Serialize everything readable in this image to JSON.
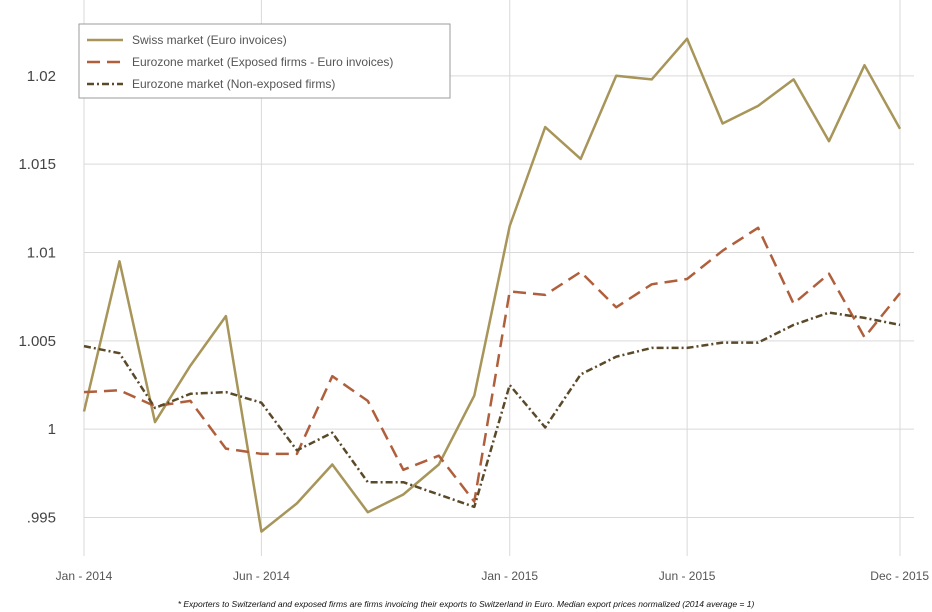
{
  "chart_data": {
    "type": "line",
    "title": "",
    "xlabel": "",
    "ylabel": "",
    "x": [
      "2014-01",
      "2014-02",
      "2014-03",
      "2014-04",
      "2014-05",
      "2014-06",
      "2014-07",
      "2014-08",
      "2014-09",
      "2014-10",
      "2014-11",
      "2014-12",
      "2015-01",
      "2015-02",
      "2015-03",
      "2015-04",
      "2015-05",
      "2015-06",
      "2015-07",
      "2015-08",
      "2015-09",
      "2015-10",
      "2015-11",
      "2015-12"
    ],
    "x_ticks": [
      {
        "x": "2014-01",
        "label": "Jan - 2014"
      },
      {
        "x": "2014-06",
        "label": "Jun - 2014"
      },
      {
        "x": "2015-01",
        "label": "Jan - 2015"
      },
      {
        "x": "2015-06",
        "label": "Jun - 2015"
      },
      {
        "x": "2015-12",
        "label": "Dec - 2015"
      }
    ],
    "x_grid": [
      "2014-01",
      "2014-06",
      "2015-01",
      "2015-06",
      "2015-12"
    ],
    "y_ticks": [
      {
        "y": 0.995,
        "label": ".995"
      },
      {
        "y": 1.0,
        "label": "1"
      },
      {
        "y": 1.005,
        "label": "1.005"
      },
      {
        "y": 1.01,
        "label": "1.01"
      },
      {
        "y": 1.015,
        "label": "1.015"
      },
      {
        "y": 1.02,
        "label": "1.02"
      }
    ],
    "ylim": [
      0.9935,
      1.0235
    ],
    "grid": true,
    "legend": "top-left",
    "series": [
      {
        "name": "Swiss market (Euro invoices)",
        "style": "solid",
        "color": "#A8955A",
        "values": [
          1.001,
          1.0095,
          1.0004,
          1.0036,
          1.0064,
          0.9942,
          0.9958,
          0.998,
          0.9953,
          0.9963,
          0.998,
          1.0019,
          1.0115,
          1.0171,
          1.0153,
          1.02,
          1.0198,
          1.0221,
          1.0173,
          1.0183,
          1.0198,
          1.0163,
          1.0206,
          1.017
        ]
      },
      {
        "name": "Eurozone market (Exposed firms - Euro invoices)",
        "style": "dash",
        "color": "#B05F3C",
        "values": [
          1.0021,
          1.0022,
          1.0013,
          1.0016,
          0.9989,
          0.9986,
          0.9986,
          1.003,
          1.0016,
          0.9977,
          0.9985,
          0.9959,
          1.0078,
          1.0076,
          1.0089,
          1.0069,
          1.0082,
          1.0085,
          1.0101,
          1.0114,
          1.0071,
          1.0088,
          1.0052,
          1.0077
        ]
      },
      {
        "name": "Eurozone market (Non-exposed firms)",
        "style": "dashdot",
        "color": "#5A4A2A",
        "values": [
          1.0047,
          1.0043,
          1.0012,
          1.002,
          1.0021,
          1.0015,
          0.9988,
          0.9998,
          0.997,
          0.997,
          0.9963,
          0.9956,
          1.0025,
          1.0001,
          1.0031,
          1.0041,
          1.0046,
          1.0046,
          1.0049,
          1.0049,
          1.0059,
          1.0066,
          1.0063,
          1.0059
        ]
      }
    ],
    "footnote": "* Exporters to Switzerland and exposed firms are firms invoicing their exports to Switzerland in Euro. Median export prices normalized (2014 average = 1)"
  }
}
